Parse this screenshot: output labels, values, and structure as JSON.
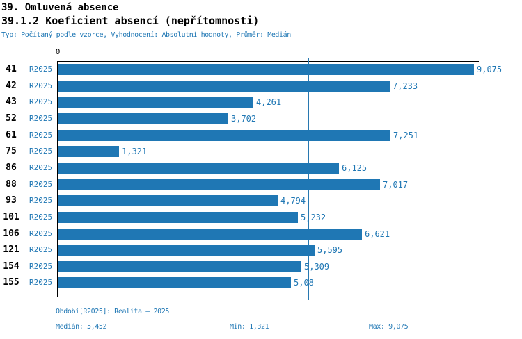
{
  "header": {
    "title1": "39. Omluvená absence",
    "title2": "39.1.2 Koeficient absencí (nepřítomnosti)",
    "subtitle": "Typ: Počítaný podle vzorce, Vyhodnocení: Absolutní hodnoty, Průměr: Medián"
  },
  "chart_data": {
    "type": "bar",
    "orientation": "horizontal",
    "title": "39.1.2 Koeficient absencí (nepřítomnosti)",
    "categories": [
      "41",
      "42",
      "43",
      "52",
      "61",
      "75",
      "86",
      "88",
      "93",
      "101",
      "106",
      "121",
      "154",
      "155"
    ],
    "series_label": "R2025",
    "values": [
      9.075,
      7.233,
      4.261,
      3.702,
      7.251,
      1.321,
      6.125,
      7.017,
      4.794,
      5.232,
      6.621,
      5.595,
      5.309,
      5.08
    ],
    "value_labels": [
      "9,075",
      "7,233",
      "4,261",
      "3,702",
      "7,251",
      "1,321",
      "6,125",
      "7,017",
      "4,794",
      "5,232",
      "6,621",
      "5,595",
      "5,309",
      "5,08"
    ],
    "x_tick_label": "0",
    "xlim": [
      0,
      9.075
    ],
    "median": 5.452,
    "min": 1.321,
    "max": 9.075,
    "grid": false,
    "legend": false,
    "bar_color": "#1f77b4",
    "text_color": "#1f77b4",
    "median_line_color": "#2878b0"
  },
  "footer": {
    "period": "Období[R2025]: Realita – 2025",
    "median": "Medián: 5,452",
    "min": "Min: 1,321",
    "max": "Max: 9,075"
  }
}
